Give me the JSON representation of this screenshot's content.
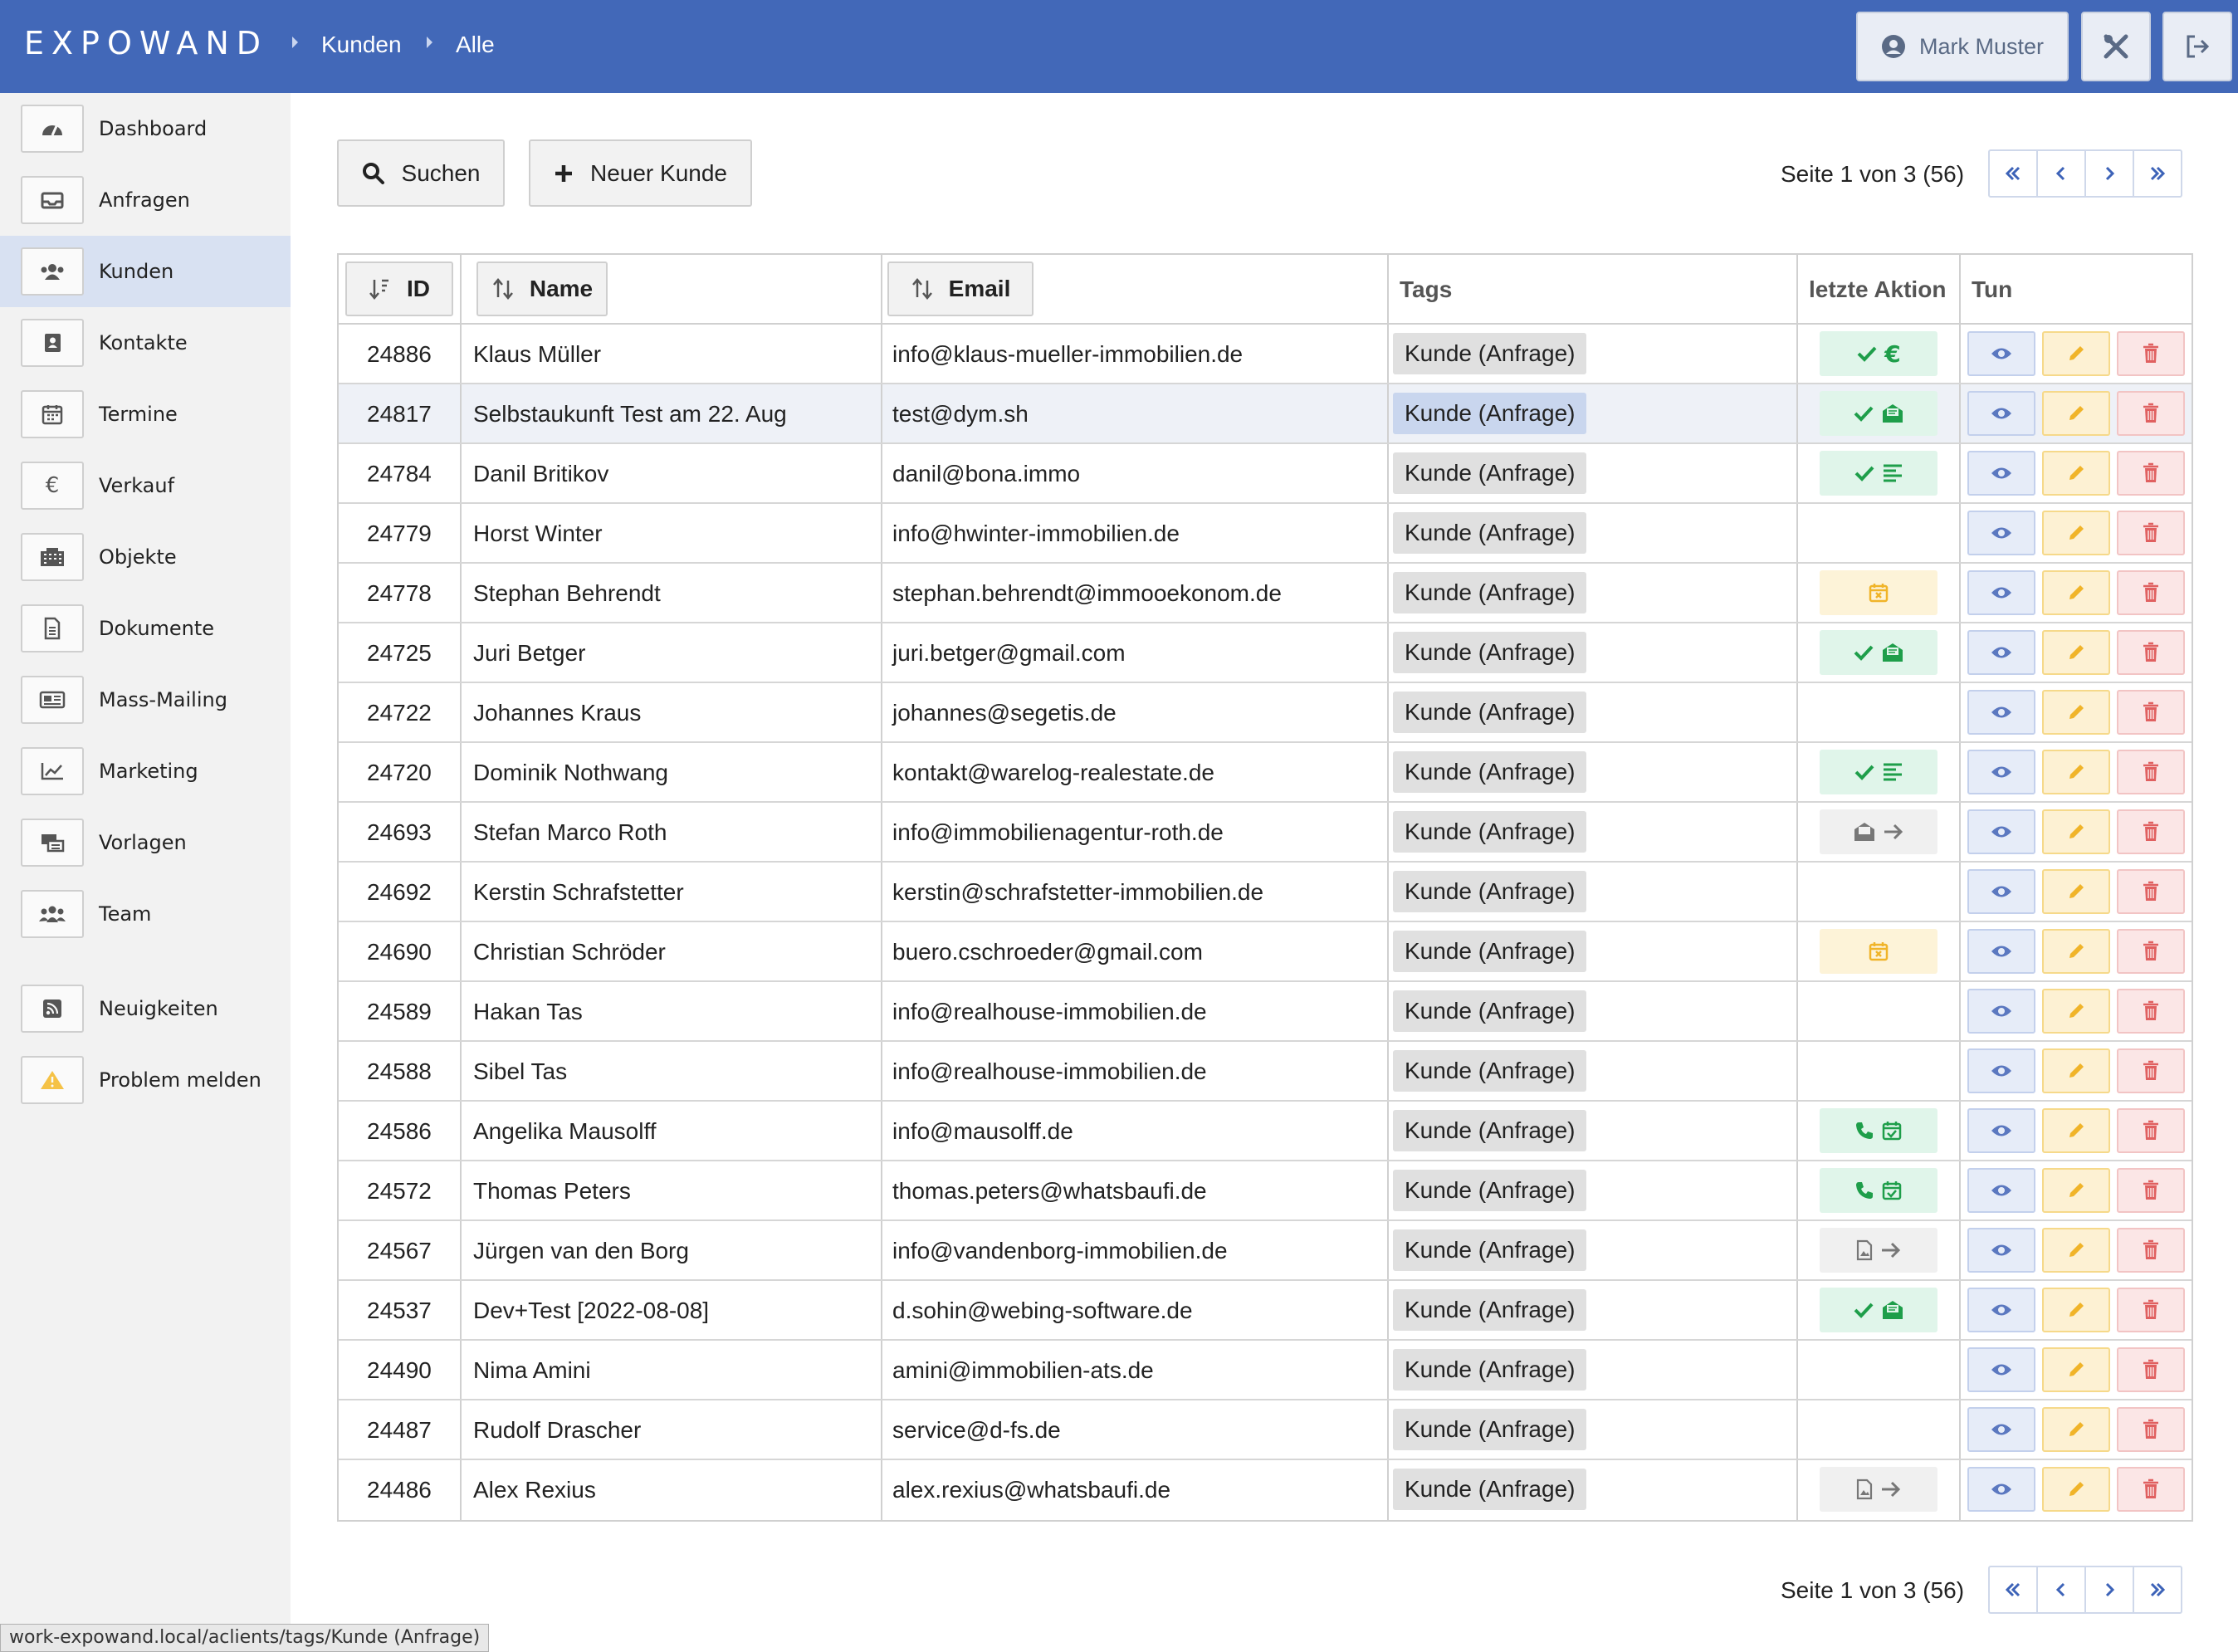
{
  "app": {
    "logo": "EXPOWAND",
    "breadcrumb": [
      "Kunden",
      "Alle"
    ]
  },
  "header": {
    "user_name": "Mark Muster",
    "tools_icon": "tools-icon",
    "logout_icon": "logout-icon"
  },
  "sidebar": {
    "items": [
      {
        "label": "Dashboard",
        "icon": "dashboard-icon"
      },
      {
        "label": "Anfragen",
        "icon": "inbox-icon"
      },
      {
        "label": "Kunden",
        "icon": "users-icon",
        "active": true
      },
      {
        "label": "Kontakte",
        "icon": "address-book-icon"
      },
      {
        "label": "Termine",
        "icon": "calendar-icon"
      },
      {
        "label": "Verkauf",
        "icon": "euro-icon"
      },
      {
        "label": "Objekte",
        "icon": "building-icon"
      },
      {
        "label": "Dokumente",
        "icon": "document-icon"
      },
      {
        "label": "Mass-Mailing",
        "icon": "newspaper-icon"
      },
      {
        "label": "Marketing",
        "icon": "chart-icon"
      },
      {
        "label": "Vorlagen",
        "icon": "templates-icon"
      },
      {
        "label": "Team",
        "icon": "team-icon"
      },
      {
        "label": "Neuigkeiten",
        "icon": "rss-icon"
      },
      {
        "label": "Problem melden",
        "icon": "warning-icon"
      }
    ]
  },
  "toolbar": {
    "search_label": "Suchen",
    "new_label": "Neuer Kunde"
  },
  "pagination": {
    "text": "Seite 1 von 3 (56)",
    "current": 1,
    "total_pages": 3,
    "total": 56
  },
  "table": {
    "headers": {
      "id": "ID",
      "name": "Name",
      "email": "Email",
      "tags": "Tags",
      "last_action": "letzte Aktion",
      "actions": "Tun"
    },
    "rows": [
      {
        "id": "24886",
        "name": "Klaus Müller",
        "email": "info@klaus-mueller-immobilien.de",
        "tag": "Kunde (Anfrage)",
        "action": "check-euro"
      },
      {
        "id": "24817",
        "name": "Selbstaukunft Test am 22. Aug",
        "email": "test@dym.sh",
        "tag": "Kunde (Anfrage)",
        "action": "check-mail",
        "highlight": true
      },
      {
        "id": "24784",
        "name": "Danil Britikov",
        "email": "danil@bona.immo",
        "tag": "Kunde (Anfrage)",
        "action": "check-list"
      },
      {
        "id": "24779",
        "name": "Horst Winter",
        "email": "info@hwinter-immobilien.de",
        "tag": "Kunde (Anfrage)",
        "action": ""
      },
      {
        "id": "24778",
        "name": "Stephan Behrendt",
        "email": "stephan.behrendt@immooekonom.de",
        "tag": "Kunde (Anfrage)",
        "action": "calendar-x"
      },
      {
        "id": "24725",
        "name": "Juri Betger",
        "email": "juri.betger@gmail.com",
        "tag": "Kunde (Anfrage)",
        "action": "check-mail"
      },
      {
        "id": "24722",
        "name": "Johannes Kraus",
        "email": "johannes@segetis.de",
        "tag": "Kunde (Anfrage)",
        "action": ""
      },
      {
        "id": "24720",
        "name": "Dominik Nothwang",
        "email": "kontakt@warelog-realestate.de",
        "tag": "Kunde (Anfrage)",
        "action": "check-list"
      },
      {
        "id": "24693",
        "name": "Stefan Marco Roth",
        "email": "info@immobilienagentur-roth.de",
        "tag": "Kunde (Anfrage)",
        "action": "mail-arrow"
      },
      {
        "id": "24692",
        "name": "Kerstin Schrafstetter",
        "email": "kerstin@schrafstetter-immobilien.de",
        "tag": "Kunde (Anfrage)",
        "action": ""
      },
      {
        "id": "24690",
        "name": "Christian Schröder",
        "email": "buero.cschroeder@gmail.com",
        "tag": "Kunde (Anfrage)",
        "action": "calendar-x"
      },
      {
        "id": "24589",
        "name": "Hakan Tas",
        "email": "info@realhouse-immobilien.de",
        "tag": "Kunde (Anfrage)",
        "action": ""
      },
      {
        "id": "24588",
        "name": "Sibel Tas",
        "email": "info@realhouse-immobilien.de",
        "tag": "Kunde (Anfrage)",
        "action": ""
      },
      {
        "id": "24586",
        "name": "Angelika Mausolff",
        "email": "info@mausolff.de",
        "tag": "Kunde (Anfrage)",
        "action": "phone-calendar"
      },
      {
        "id": "24572",
        "name": "Thomas Peters",
        "email": "thomas.peters@whatsbaufi.de",
        "tag": "Kunde (Anfrage)",
        "action": "phone-calendar"
      },
      {
        "id": "24567",
        "name": "Jürgen van den Borg",
        "email": "info@vandenborg-immobilien.de",
        "tag": "Kunde (Anfrage)",
        "action": "doc-arrow"
      },
      {
        "id": "24537",
        "name": "Dev+Test [2022-08-08]",
        "email": "d.sohin@webing-software.de",
        "tag": "Kunde (Anfrage)",
        "action": "check-mail"
      },
      {
        "id": "24490",
        "name": "Nima Amini",
        "email": "amini@immobilien-ats.de",
        "tag": "Kunde (Anfrage)",
        "action": ""
      },
      {
        "id": "24487",
        "name": "Rudolf Drascher",
        "email": "service@d-fs.de",
        "tag": "Kunde (Anfrage)",
        "action": ""
      },
      {
        "id": "24486",
        "name": "Alex Rexius",
        "email": "alex.rexius@whatsbaufi.de",
        "tag": "Kunde (Anfrage)",
        "action": "doc-arrow"
      }
    ]
  },
  "colors": {
    "brand": "#4268b8",
    "green": "#1e9e4a",
    "yellow": "#f0b429",
    "red": "#e06060",
    "blue": "#5b78c0"
  },
  "status_bar": "work-expowand.local/aclients/tags/Kunde (Anfrage)"
}
